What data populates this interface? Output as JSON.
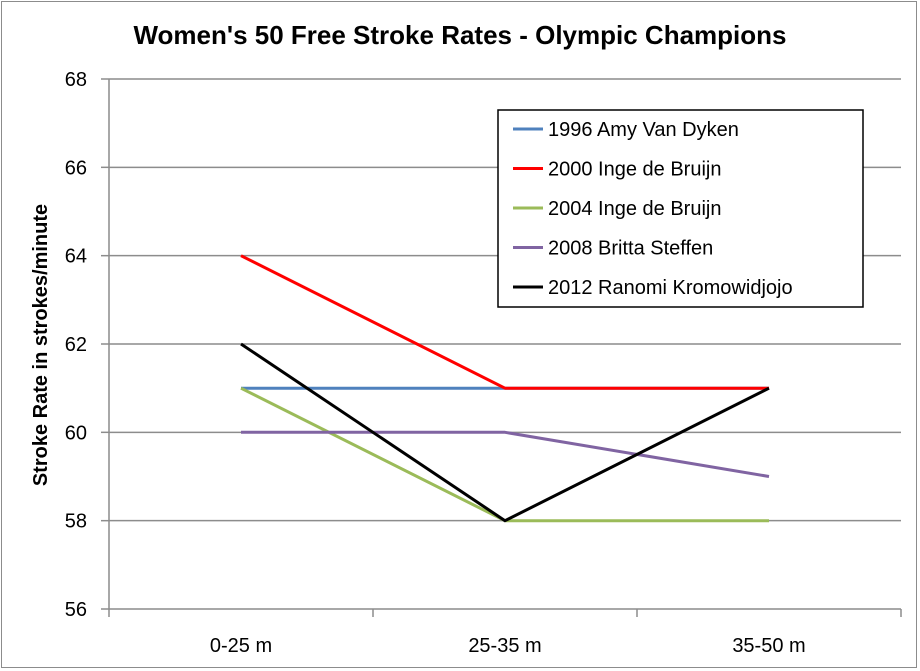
{
  "chart_data": {
    "type": "line",
    "title": "Women's 50 Free Stroke Rates - Olympic Champions",
    "xlabel": "",
    "ylabel": "Stroke Rate in strokes/minute",
    "categories": [
      "0-25 m",
      "25-35 m",
      "35-50 m"
    ],
    "ylim": [
      56,
      68
    ],
    "yticks": [
      56,
      58,
      60,
      62,
      64,
      66,
      68
    ],
    "grid": true,
    "legend_position": "top-right",
    "series": [
      {
        "name": "1996 Amy Van Dyken",
        "color": "#4f81bd",
        "values": [
          61,
          61,
          61
        ]
      },
      {
        "name": "2000 Inge de Bruijn",
        "color": "#ff0000",
        "values": [
          64,
          61,
          61
        ]
      },
      {
        "name": "2004 Inge de Bruijn",
        "color": "#9bbb59",
        "values": [
          61,
          58,
          58
        ]
      },
      {
        "name": "2008 Britta Steffen",
        "color": "#8064a2",
        "values": [
          60,
          60,
          59
        ]
      },
      {
        "name": "2012 Ranomi Kromowidjojo",
        "color": "#000000",
        "values": [
          62,
          58,
          61
        ]
      }
    ]
  }
}
